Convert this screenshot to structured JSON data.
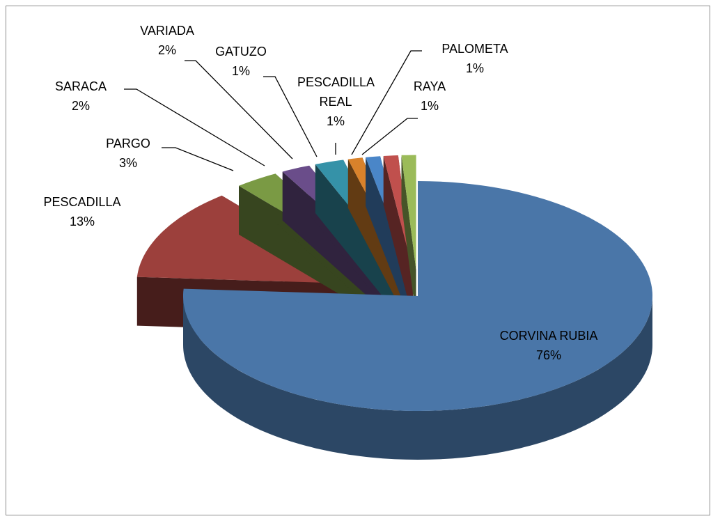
{
  "chart_data": {
    "type": "pie",
    "categories": [
      "CORVINA RUBIA",
      "PESCADILLA",
      "PARGO",
      "SARACA",
      "VARIADA",
      "GATUZO",
      "PESCADILLA REAL",
      "PALOMETA",
      "RAYA"
    ],
    "values": [
      76,
      13,
      3,
      2,
      2,
      1,
      1,
      1,
      1
    ],
    "value_labels": [
      "76%",
      "13%",
      "3%",
      "2%",
      "2%",
      "1%",
      "1%",
      "1%",
      "1%"
    ],
    "colors": [
      "#4a76a8",
      "#9c403c",
      "#7a9a44",
      "#6a4d8a",
      "#3592a8",
      "#d9822b",
      "#4a86c8",
      "#c0504d",
      "#9bbb59"
    ],
    "three_d": true
  }
}
